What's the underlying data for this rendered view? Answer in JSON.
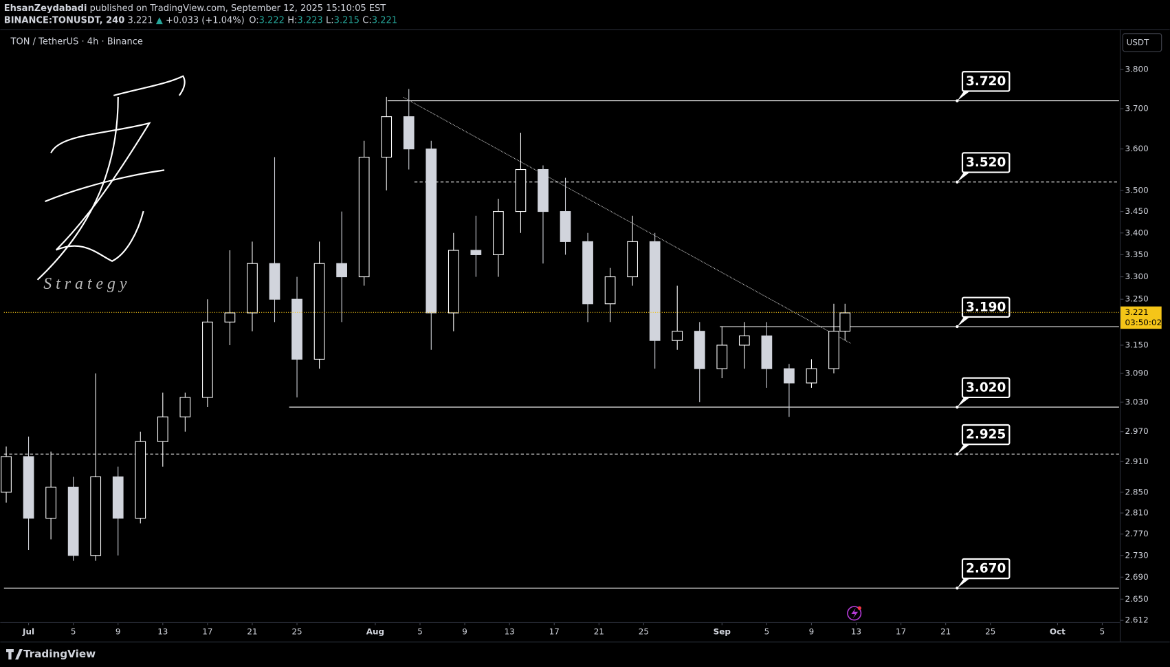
{
  "header": {
    "author": "EhsanZeydabadi",
    "published": "published on TradingView.com, September 12, 2025 15:10:05 EST",
    "symbol": "BINANCE:TONUSDT, 240",
    "last": "3.221",
    "arrow": "▲",
    "change": "+0.033 (+1.04%)",
    "ohlc": [
      {
        "label": "O:",
        "value": "3.222"
      },
      {
        "label": "H:",
        "value": "3.223"
      },
      {
        "label": "L:",
        "value": "3.215"
      },
      {
        "label": "C:",
        "value": "3.221"
      }
    ]
  },
  "chart_data": {
    "type": "candlestick",
    "title": "TON / TetherUS · 4h · Binance",
    "currency": "USDT",
    "log_scale": true,
    "up_color": "#ffffff",
    "down_color": "#d1d4dc",
    "x": [
      -2,
      0,
      2,
      4,
      6,
      8,
      10,
      12,
      14,
      16,
      18,
      20,
      22,
      24,
      26,
      28,
      30,
      32,
      34,
      36,
      38,
      40,
      42,
      44,
      46,
      48,
      50,
      52,
      54,
      56,
      58,
      60,
      62,
      64,
      66,
      68,
      70,
      72,
      73
    ],
    "open": [
      2.85,
      2.92,
      2.8,
      2.86,
      2.73,
      2.88,
      2.8,
      2.95,
      3.0,
      3.04,
      3.2,
      3.22,
      3.33,
      3.25,
      3.12,
      3.33,
      3.3,
      3.58,
      3.68,
      3.6,
      3.22,
      3.36,
      3.35,
      3.45,
      3.55,
      3.45,
      3.38,
      3.24,
      3.3,
      3.38,
      3.16,
      3.18,
      3.1,
      3.15,
      3.17,
      3.1,
      3.07,
      3.1,
      3.18
    ],
    "high": [
      2.94,
      2.96,
      2.93,
      2.88,
      3.09,
      2.9,
      2.97,
      3.05,
      3.05,
      3.25,
      3.36,
      3.38,
      3.58,
      3.3,
      3.38,
      3.45,
      3.62,
      3.73,
      3.75,
      3.62,
      3.4,
      3.44,
      3.48,
      3.64,
      3.56,
      3.53,
      3.4,
      3.32,
      3.44,
      3.4,
      3.28,
      3.2,
      3.19,
      3.2,
      3.2,
      3.11,
      3.12,
      3.24,
      3.24
    ],
    "low": [
      2.83,
      2.74,
      2.76,
      2.72,
      2.72,
      2.73,
      2.79,
      2.9,
      2.97,
      3.02,
      3.15,
      3.18,
      3.2,
      3.04,
      3.1,
      3.2,
      3.28,
      3.5,
      3.55,
      3.14,
      3.18,
      3.3,
      3.3,
      3.4,
      3.33,
      3.35,
      3.2,
      3.2,
      3.28,
      3.1,
      3.14,
      3.03,
      3.08,
      3.1,
      3.06,
      3.0,
      3.06,
      3.09,
      3.16
    ],
    "close": [
      2.92,
      2.8,
      2.86,
      2.73,
      2.88,
      2.8,
      2.95,
      3.0,
      3.04,
      3.2,
      3.22,
      3.33,
      3.25,
      3.12,
      3.33,
      3.3,
      3.58,
      3.68,
      3.6,
      3.22,
      3.36,
      3.35,
      3.45,
      3.55,
      3.45,
      3.38,
      3.24,
      3.3,
      3.38,
      3.16,
      3.18,
      3.1,
      3.15,
      3.17,
      3.1,
      3.07,
      3.1,
      3.18,
      3.22
    ],
    "xlim": [
      -2.2,
      97.5
    ],
    "xticks": [
      {
        "value": 0,
        "label": "Jul"
      },
      {
        "value": 4,
        "label": "5"
      },
      {
        "value": 8,
        "label": "9"
      },
      {
        "value": 12,
        "label": "13"
      },
      {
        "value": 16,
        "label": "17"
      },
      {
        "value": 20,
        "label": "21"
      },
      {
        "value": 24,
        "label": "25"
      },
      {
        "value": 31,
        "label": "Aug"
      },
      {
        "value": 35,
        "label": "5"
      },
      {
        "value": 39,
        "label": "9"
      },
      {
        "value": 43,
        "label": "13"
      },
      {
        "value": 47,
        "label": "17"
      },
      {
        "value": 51,
        "label": "21"
      },
      {
        "value": 55,
        "label": "25"
      },
      {
        "value": 62,
        "label": "Sep"
      },
      {
        "value": 66,
        "label": "5"
      },
      {
        "value": 70,
        "label": "9"
      },
      {
        "value": 74,
        "label": "13"
      },
      {
        "value": 78,
        "label": "17"
      },
      {
        "value": 82,
        "label": "21"
      },
      {
        "value": 86,
        "label": "25"
      },
      {
        "value": 92,
        "label": "Oct"
      },
      {
        "value": 96,
        "label": "5"
      }
    ],
    "ylim": [
      2.61,
      3.904
    ],
    "yticks": [
      {
        "value": 3.8,
        "label": "3.800"
      },
      {
        "value": 3.7,
        "label": "3.700"
      },
      {
        "value": 3.6,
        "label": "3.600"
      },
      {
        "value": 3.5,
        "label": "3.500"
      },
      {
        "value": 3.45,
        "label": "3.450"
      },
      {
        "value": 3.4,
        "label": "3.400"
      },
      {
        "value": 3.35,
        "label": "3.350"
      },
      {
        "value": 3.3,
        "label": "3.300"
      },
      {
        "value": 3.25,
        "label": "3.250"
      },
      {
        "value": 3.15,
        "label": "3.150"
      },
      {
        "value": 3.09,
        "label": "3.090"
      },
      {
        "value": 3.03,
        "label": "3.030"
      },
      {
        "value": 2.97,
        "label": "2.970"
      },
      {
        "value": 2.91,
        "label": "2.910"
      },
      {
        "value": 2.85,
        "label": "2.850"
      },
      {
        "value": 2.81,
        "label": "2.810"
      },
      {
        "value": 2.77,
        "label": "2.770"
      },
      {
        "value": 2.73,
        "label": "2.730"
      },
      {
        "value": 2.69,
        "label": "2.690"
      },
      {
        "value": 2.65,
        "label": "2.650"
      },
      {
        "value": 2.612,
        "label": "2.612"
      }
    ],
    "levels": [
      {
        "value": 3.72,
        "label": "3.720",
        "start": 32.1,
        "dashed": false
      },
      {
        "value": 3.52,
        "label": "3.520",
        "start": 34.5,
        "dashed": true
      },
      {
        "value": 3.19,
        "label": "3.190",
        "start": 61.8,
        "dashed": false
      },
      {
        "value": 3.02,
        "label": "3.020",
        "start": 23.3,
        "dashed": false
      },
      {
        "value": 2.925,
        "label": "2.925",
        "dashed": true
      },
      {
        "value": 2.67,
        "label": "2.670",
        "dashed": false
      }
    ],
    "trendline": {
      "x": [
        33.5,
        73.5
      ],
      "y": [
        3.729,
        3.154
      ]
    },
    "last_price": {
      "value": 3.221,
      "label": "3.221",
      "countdown": "03:50:02",
      "color": "#f5c518"
    },
    "watermark": "S t r a t e g y",
    "brand": "TradingView"
  }
}
